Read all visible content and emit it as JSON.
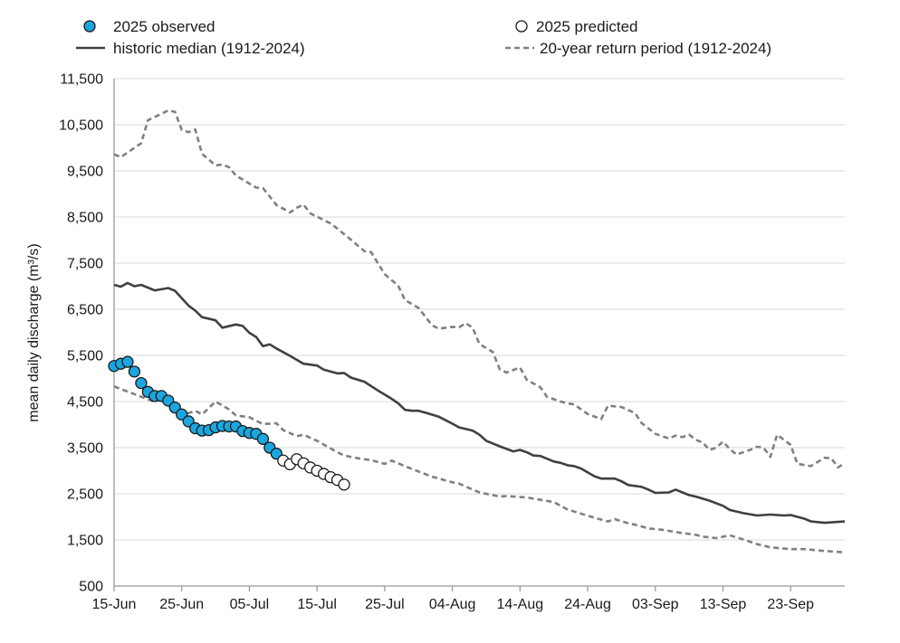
{
  "chart_data": {
    "type": "line",
    "xlabel": "",
    "ylabel": "mean daily discharge (m³/s)",
    "ylim": [
      500,
      11500
    ],
    "yticks": [
      "500",
      "1,500",
      "2,500",
      "3,500",
      "4,500",
      "5,500",
      "6,500",
      "7,500",
      "8,500",
      "9,500",
      "10,500",
      "11,500"
    ],
    "ytick_values": [
      500,
      1500,
      2500,
      3500,
      4500,
      5500,
      6500,
      7500,
      8500,
      9500,
      10500,
      11500
    ],
    "xlim": [
      "15-Jun",
      "01-Oct"
    ],
    "xticks": [
      "15-Jun",
      "25-Jun",
      "05-Jul",
      "15-Jul",
      "25-Jul",
      "04-Aug",
      "14-Aug",
      "24-Aug",
      "03-Sep",
      "13-Sep",
      "23-Sep"
    ],
    "grid": true,
    "legend_position": "top",
    "colors": {
      "observed": "#1aa7e0",
      "median": "#404040",
      "return": "#808080",
      "grid": "#d9d9d9"
    },
    "series": [
      {
        "name": "2025 observed",
        "style": "marker-filled",
        "points": [
          [
            "15-Jun",
            5270
          ],
          [
            "16-Jun",
            5320
          ],
          [
            "17-Jun",
            5360
          ],
          [
            "18-Jun",
            5150
          ],
          [
            "19-Jun",
            4900
          ],
          [
            "20-Jun",
            4710
          ],
          [
            "21-Jun",
            4620
          ],
          [
            "22-Jun",
            4620
          ],
          [
            "23-Jun",
            4520
          ],
          [
            "24-Jun",
            4370
          ],
          [
            "25-Jun",
            4220
          ],
          [
            "26-Jun",
            4070
          ],
          [
            "27-Jun",
            3920
          ],
          [
            "28-Jun",
            3870
          ],
          [
            "29-Jun",
            3880
          ],
          [
            "30-Jun",
            3940
          ],
          [
            "01-Jul",
            3970
          ],
          [
            "02-Jul",
            3960
          ],
          [
            "03-Jul",
            3960
          ],
          [
            "04-Jul",
            3860
          ],
          [
            "05-Jul",
            3820
          ],
          [
            "06-Jul",
            3800
          ],
          [
            "07-Jul",
            3690
          ],
          [
            "08-Jul",
            3500
          ],
          [
            "09-Jul",
            3370
          ]
        ]
      },
      {
        "name": "2025 predicted",
        "style": "marker-open",
        "points": [
          [
            "10-Jul",
            3220
          ],
          [
            "11-Jul",
            3140
          ],
          [
            "12-Jul",
            3250
          ],
          [
            "13-Jul",
            3160
          ],
          [
            "14-Jul",
            3070
          ],
          [
            "15-Jul",
            3000
          ],
          [
            "16-Jul",
            2930
          ],
          [
            "17-Jul",
            2860
          ],
          [
            "18-Jul",
            2800
          ],
          [
            "19-Jul",
            2700
          ]
        ]
      },
      {
        "name": "historic median (1912-2024)",
        "style": "solid",
        "points": [
          [
            "15-Jun",
            7030
          ],
          [
            "16-Jun",
            6990
          ],
          [
            "17-Jun",
            7070
          ],
          [
            "18-Jun",
            7000
          ],
          [
            "19-Jun",
            7030
          ],
          [
            "21-Jun",
            6910
          ],
          [
            "23-Jun",
            6960
          ],
          [
            "24-Jun",
            6900
          ],
          [
            "26-Jun",
            6580
          ],
          [
            "27-Jun",
            6470
          ],
          [
            "28-Jun",
            6330
          ],
          [
            "30-Jun",
            6260
          ],
          [
            "01-Jul",
            6100
          ],
          [
            "03-Jul",
            6170
          ],
          [
            "04-Jul",
            6140
          ],
          [
            "05-Jul",
            5990
          ],
          [
            "06-Jul",
            5900
          ],
          [
            "07-Jul",
            5700
          ],
          [
            "08-Jul",
            5740
          ],
          [
            "09-Jul",
            5650
          ],
          [
            "11-Jul",
            5490
          ],
          [
            "13-Jul",
            5320
          ],
          [
            "15-Jul",
            5280
          ],
          [
            "16-Jul",
            5190
          ],
          [
            "18-Jul",
            5110
          ],
          [
            "19-Jul",
            5120
          ],
          [
            "20-Jul",
            5020
          ],
          [
            "22-Jul",
            4930
          ],
          [
            "24-Jul",
            4740
          ],
          [
            "26-Jul",
            4560
          ],
          [
            "27-Jul",
            4460
          ],
          [
            "28-Jul",
            4320
          ],
          [
            "29-Jul",
            4300
          ],
          [
            "30-Jul",
            4300
          ],
          [
            "31-Jul",
            4260
          ],
          [
            "02-Aug",
            4170
          ],
          [
            "04-Aug",
            4020
          ],
          [
            "05-Aug",
            3940
          ],
          [
            "07-Aug",
            3870
          ],
          [
            "08-Aug",
            3780
          ],
          [
            "09-Aug",
            3650
          ],
          [
            "11-Aug",
            3530
          ],
          [
            "13-Aug",
            3420
          ],
          [
            "14-Aug",
            3450
          ],
          [
            "15-Aug",
            3400
          ],
          [
            "16-Aug",
            3330
          ],
          [
            "17-Aug",
            3320
          ],
          [
            "19-Aug",
            3200
          ],
          [
            "20-Aug",
            3170
          ],
          [
            "21-Aug",
            3120
          ],
          [
            "22-Aug",
            3100
          ],
          [
            "23-Aug",
            3050
          ],
          [
            "25-Aug",
            2880
          ],
          [
            "26-Aug",
            2830
          ],
          [
            "28-Aug",
            2830
          ],
          [
            "29-Aug",
            2770
          ],
          [
            "30-Aug",
            2690
          ],
          [
            "01-Sep",
            2650
          ],
          [
            "02-Sep",
            2590
          ],
          [
            "03-Sep",
            2520
          ],
          [
            "05-Sep",
            2530
          ],
          [
            "06-Sep",
            2590
          ],
          [
            "08-Sep",
            2470
          ],
          [
            "09-Sep",
            2440
          ],
          [
            "11-Sep",
            2350
          ],
          [
            "13-Sep",
            2240
          ],
          [
            "14-Sep",
            2150
          ],
          [
            "16-Sep",
            2080
          ],
          [
            "18-Sep",
            2030
          ],
          [
            "20-Sep",
            2050
          ],
          [
            "22-Sep",
            2030
          ],
          [
            "23-Sep",
            2040
          ],
          [
            "25-Sep",
            1960
          ],
          [
            "26-Sep",
            1900
          ],
          [
            "28-Sep",
            1870
          ],
          [
            "30-Sep",
            1890
          ],
          [
            "01-Oct",
            1900
          ]
        ]
      },
      {
        "name": "20-year return period (1912-2024)",
        "style": "dashed",
        "points": [
          [
            "15-Jun",
            9860
          ],
          [
            "16-Jun",
            9800
          ],
          [
            "19-Jun",
            10100
          ],
          [
            "20-Jun",
            10600
          ],
          [
            "22-Jun",
            10740
          ],
          [
            "23-Jun",
            10810
          ],
          [
            "24-Jun",
            10780
          ],
          [
            "25-Jun",
            10390
          ],
          [
            "26-Jun",
            10340
          ],
          [
            "27-Jun",
            10400
          ],
          [
            "28-Jun",
            9870
          ],
          [
            "30-Jun",
            9620
          ],
          [
            "01-Jul",
            9640
          ],
          [
            "02-Jul",
            9580
          ],
          [
            "03-Jul",
            9400
          ],
          [
            "06-Jul",
            9140
          ],
          [
            "07-Jul",
            9130
          ],
          [
            "09-Jul",
            8760
          ],
          [
            "11-Jul",
            8600
          ],
          [
            "12-Jul",
            8700
          ],
          [
            "13-Jul",
            8770
          ],
          [
            "14-Jul",
            8580
          ],
          [
            "17-Jul",
            8360
          ],
          [
            "18-Jul",
            8250
          ],
          [
            "20-Jul",
            8010
          ],
          [
            "22-Jul",
            7760
          ],
          [
            "23-Jul",
            7740
          ],
          [
            "25-Jul",
            7260
          ],
          [
            "27-Jul",
            7010
          ],
          [
            "28-Jul",
            6700
          ],
          [
            "30-Jul",
            6530
          ],
          [
            "01-Aug",
            6150
          ],
          [
            "02-Aug",
            6080
          ],
          [
            "04-Aug",
            6120
          ],
          [
            "05-Aug",
            6110
          ],
          [
            "06-Aug",
            6200
          ],
          [
            "07-Aug",
            6100
          ],
          [
            "08-Aug",
            5750
          ],
          [
            "10-Aug",
            5570
          ],
          [
            "11-Aug",
            5200
          ],
          [
            "12-Aug",
            5130
          ],
          [
            "14-Aug",
            5240
          ],
          [
            "15-Aug",
            4970
          ],
          [
            "17-Aug",
            4810
          ],
          [
            "18-Aug",
            4600
          ],
          [
            "20-Aug",
            4500
          ],
          [
            "21-Aug",
            4460
          ],
          [
            "22-Aug",
            4440
          ],
          [
            "24-Aug",
            4230
          ],
          [
            "26-Aug",
            4120
          ],
          [
            "27-Aug",
            4410
          ],
          [
            "29-Aug",
            4380
          ],
          [
            "31-Aug",
            4250
          ],
          [
            "01-Sep",
            4030
          ],
          [
            "03-Sep",
            3800
          ],
          [
            "05-Sep",
            3700
          ],
          [
            "06-Sep",
            3760
          ],
          [
            "07-Sep",
            3730
          ],
          [
            "08-Sep",
            3780
          ],
          [
            "09-Sep",
            3670
          ],
          [
            "10-Sep",
            3610
          ],
          [
            "11-Sep",
            3450
          ],
          [
            "12-Sep",
            3500
          ],
          [
            "13-Sep",
            3630
          ],
          [
            "14-Sep",
            3470
          ],
          [
            "15-Sep",
            3350
          ],
          [
            "17-Sep",
            3450
          ],
          [
            "18-Sep",
            3520
          ],
          [
            "19-Sep",
            3500
          ],
          [
            "20-Sep",
            3300
          ],
          [
            "21-Sep",
            3780
          ],
          [
            "23-Sep",
            3560
          ],
          [
            "24-Sep",
            3150
          ],
          [
            "26-Sep",
            3100
          ],
          [
            "28-Sep",
            3280
          ],
          [
            "29-Sep",
            3270
          ],
          [
            "30-Sep",
            3070
          ],
          [
            "01-Oct",
            3170
          ]
        ]
      },
      {
        "name": "20-year return period (1912-2024)",
        "style": "dashed",
        "legend": false,
        "points": [
          [
            "15-Jun",
            4830
          ],
          [
            "16-Jun",
            4770
          ],
          [
            "18-Jun",
            4660
          ],
          [
            "21-Jun",
            4490
          ],
          [
            "22-Jun",
            4580
          ],
          [
            "24-Jun",
            4370
          ],
          [
            "26-Jun",
            4250
          ],
          [
            "27-Jun",
            4300
          ],
          [
            "28-Jun",
            4220
          ],
          [
            "30-Jun",
            4500
          ],
          [
            "02-Jul",
            4330
          ],
          [
            "03-Jul",
            4200
          ],
          [
            "05-Jul",
            4160
          ],
          [
            "07-Jul",
            4010
          ],
          [
            "09-Jul",
            4030
          ],
          [
            "10-Jul",
            3880
          ],
          [
            "12-Jul",
            3750
          ],
          [
            "13-Jul",
            3780
          ],
          [
            "15-Jul",
            3650
          ],
          [
            "18-Jul",
            3400
          ],
          [
            "19-Jul",
            3330
          ],
          [
            "21-Jul",
            3270
          ],
          [
            "23-Jul",
            3230
          ],
          [
            "25-Jul",
            3150
          ],
          [
            "26-Jul",
            3220
          ],
          [
            "29-Jul",
            3040
          ],
          [
            "01-Aug",
            2870
          ],
          [
            "04-Aug",
            2750
          ],
          [
            "05-Aug",
            2720
          ],
          [
            "08-Aug",
            2530
          ],
          [
            "11-Aug",
            2440
          ],
          [
            "12-Aug",
            2450
          ],
          [
            "15-Aug",
            2420
          ],
          [
            "19-Aug",
            2320
          ],
          [
            "21-Aug",
            2160
          ],
          [
            "25-Aug",
            1980
          ],
          [
            "27-Aug",
            1900
          ],
          [
            "28-Aug",
            1950
          ],
          [
            "30-Aug",
            1860
          ],
          [
            "31-Aug",
            1830
          ],
          [
            "02-Sep",
            1750
          ],
          [
            "04-Sep",
            1720
          ],
          [
            "06-Sep",
            1670
          ],
          [
            "09-Sep",
            1610
          ],
          [
            "10-Sep",
            1570
          ],
          [
            "12-Sep",
            1540
          ],
          [
            "14-Sep",
            1600
          ],
          [
            "16-Sep",
            1510
          ],
          [
            "18-Sep",
            1410
          ],
          [
            "20-Sep",
            1340
          ],
          [
            "23-Sep",
            1300
          ],
          [
            "25-Sep",
            1300
          ],
          [
            "28-Sep",
            1260
          ],
          [
            "01-Oct",
            1230
          ]
        ]
      }
    ]
  },
  "legend": {
    "observed": "2025 observed",
    "predicted": "2025 predicted",
    "median": "historic median (1912-2024)",
    "return_period": "20-year return period (1912-2024)"
  }
}
